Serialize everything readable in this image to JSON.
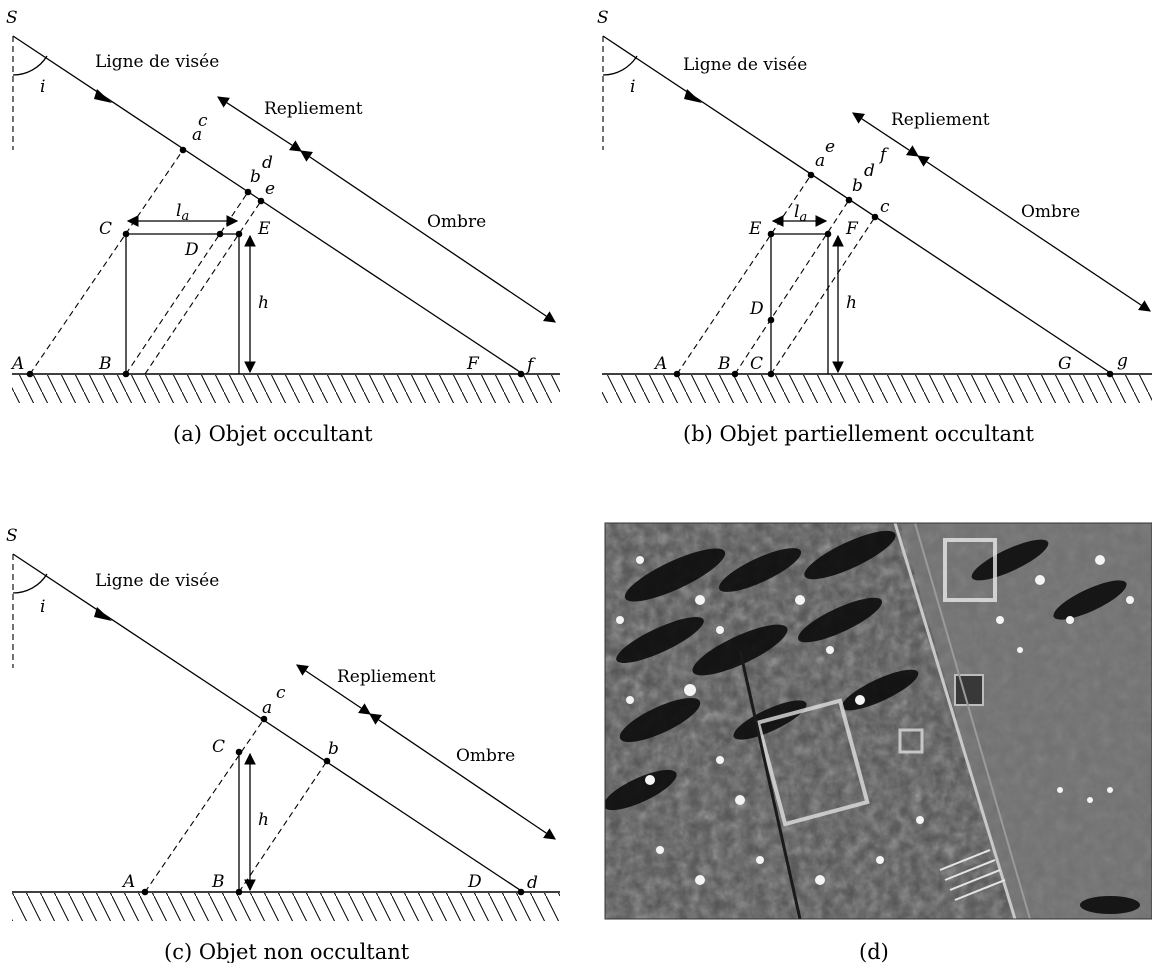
{
  "common": {
    "source": "S",
    "angle": "i",
    "line_of_sight": "Ligne de visée",
    "layover": "Repliement",
    "shadow": "Ombre",
    "height": "h",
    "la_base": "l",
    "la_sub": "a"
  },
  "panel_a": {
    "caption": "(a) Objet occultant",
    "points": {
      "A": "A",
      "B": "B",
      "C": "C",
      "D": "D",
      "E": "E",
      "F": "F",
      "a": "a",
      "b": "b",
      "c": "c",
      "d": "d",
      "e": "e",
      "f": "f"
    }
  },
  "panel_b": {
    "caption": "(b) Objet partiellement occultant",
    "points": {
      "A": "A",
      "B": "B",
      "C": "C",
      "D": "D",
      "E": "E",
      "F": "F",
      "G": "G",
      "a": "a",
      "b": "b",
      "c": "c",
      "d": "d",
      "e": "e",
      "f": "f",
      "g": "g"
    }
  },
  "panel_c": {
    "caption": "(c) Objet non occultant",
    "points": {
      "A": "A",
      "B": "B",
      "C": "C",
      "D": "D",
      "a": "a",
      "b": "b",
      "c": "c",
      "d": "d"
    }
  },
  "panel_d": {
    "caption": "(d)"
  }
}
